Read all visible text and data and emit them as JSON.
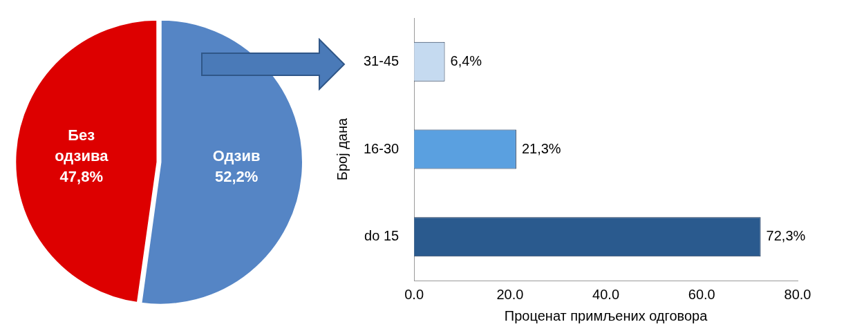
{
  "chart_data": [
    {
      "type": "pie",
      "categories": [
        "Одзив",
        "Без одзива"
      ],
      "values": [
        52.2,
        47.8
      ],
      "colors": [
        "#5585c5",
        "#dd0000"
      ],
      "value_labels": [
        "52,2%",
        "47,8%"
      ]
    },
    {
      "type": "bar",
      "orientation": "horizontal",
      "categories": [
        "31-45",
        "16-30",
        "do 15"
      ],
      "values": [
        6.4,
        21.3,
        72.3
      ],
      "colors": [
        "#c5daf0",
        "#5aa0e0",
        "#2a5a8e"
      ],
      "value_labels": [
        "6,4%",
        "21,3%",
        "72,3%"
      ],
      "xlim": [
        0,
        80
      ],
      "xticks": [
        {
          "value": 0,
          "label": "0.0"
        },
        {
          "value": 20,
          "label": "20.0"
        },
        {
          "value": 40,
          "label": "40.0"
        },
        {
          "value": 60,
          "label": "60.0"
        },
        {
          "value": 80,
          "label": "80.0"
        }
      ],
      "xlabel": "Проценат примљених одговора",
      "ylabel": "Број дана"
    }
  ]
}
